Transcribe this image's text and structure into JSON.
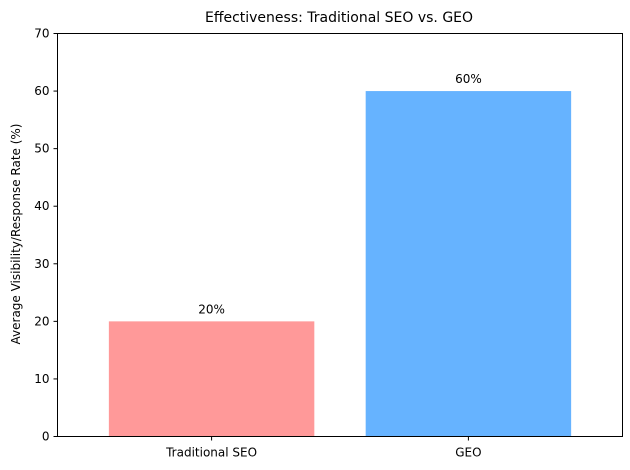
{
  "chart_data": {
    "type": "bar",
    "title": "Effectiveness: Traditional SEO vs. GEO",
    "xlabel": "",
    "ylabel": "Average Visibility/Response Rate (%)",
    "categories": [
      "Traditional SEO",
      "GEO"
    ],
    "values": [
      20,
      60
    ],
    "data_labels": [
      "20%",
      "60%"
    ],
    "colors": [
      "#ff9999",
      "#66b3ff"
    ],
    "ylim": [
      0,
      70
    ],
    "yticks": [
      0,
      10,
      20,
      30,
      40,
      50,
      60,
      70
    ],
    "grid": false,
    "legend": "none"
  }
}
